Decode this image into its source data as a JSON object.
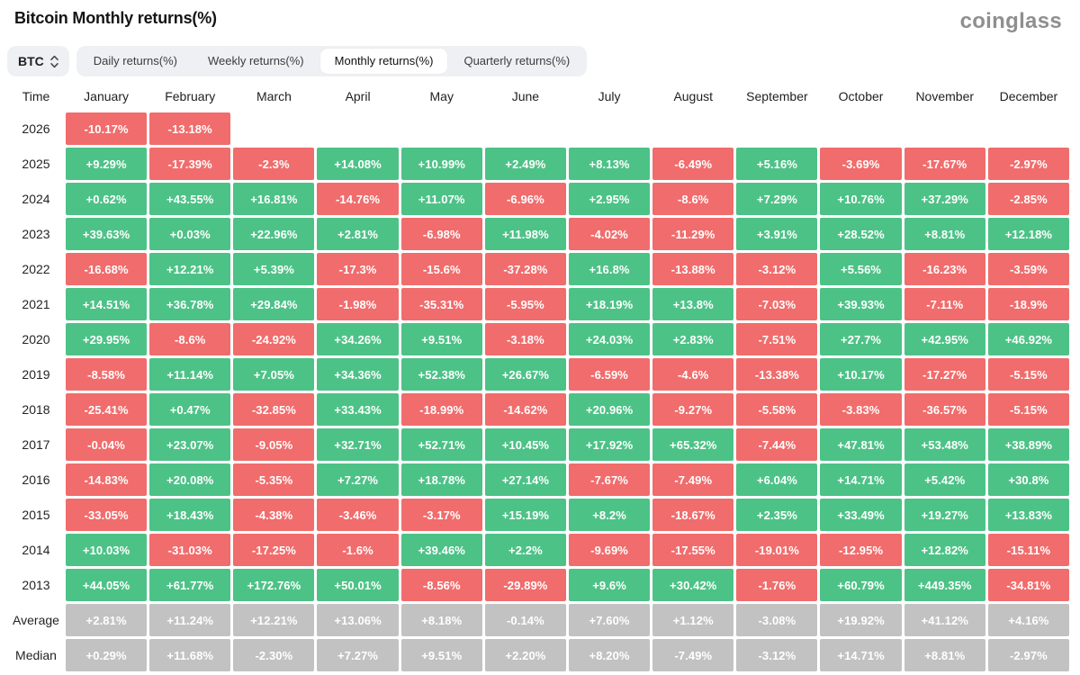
{
  "header": {
    "title": "Bitcoin Monthly returns(%)",
    "logo": "coinglass"
  },
  "controls": {
    "symbol": "BTC",
    "tabs": [
      {
        "label": "Daily returns(%)",
        "active": false
      },
      {
        "label": "Weekly returns(%)",
        "active": false
      },
      {
        "label": "Monthly returns(%)",
        "active": true
      },
      {
        "label": "Quarterly returns(%)",
        "active": false
      }
    ]
  },
  "colors": {
    "positive": "#4dc287",
    "negative": "#f16c6c",
    "summary": "#c2c2c2"
  },
  "chart_data": {
    "type": "heatmap",
    "title": "Bitcoin Monthly returns(%)",
    "time_header": "Time",
    "unit": "percent",
    "columns": [
      "January",
      "February",
      "March",
      "April",
      "May",
      "June",
      "July",
      "August",
      "September",
      "October",
      "November",
      "December"
    ],
    "rows": [
      {
        "label": "2026",
        "kind": "year",
        "values": [
          "-10.17%",
          "-13.18%",
          null,
          null,
          null,
          null,
          null,
          null,
          null,
          null,
          null,
          null
        ]
      },
      {
        "label": "2025",
        "kind": "year",
        "values": [
          "+9.29%",
          "-17.39%",
          "-2.3%",
          "+14.08%",
          "+10.99%",
          "+2.49%",
          "+8.13%",
          "-6.49%",
          "+5.16%",
          "-3.69%",
          "-17.67%",
          "-2.97%"
        ]
      },
      {
        "label": "2024",
        "kind": "year",
        "values": [
          "+0.62%",
          "+43.55%",
          "+16.81%",
          "-14.76%",
          "+11.07%",
          "-6.96%",
          "+2.95%",
          "-8.6%",
          "+7.29%",
          "+10.76%",
          "+37.29%",
          "-2.85%"
        ]
      },
      {
        "label": "2023",
        "kind": "year",
        "values": [
          "+39.63%",
          "+0.03%",
          "+22.96%",
          "+2.81%",
          "-6.98%",
          "+11.98%",
          "-4.02%",
          "-11.29%",
          "+3.91%",
          "+28.52%",
          "+8.81%",
          "+12.18%"
        ]
      },
      {
        "label": "2022",
        "kind": "year",
        "values": [
          "-16.68%",
          "+12.21%",
          "+5.39%",
          "-17.3%",
          "-15.6%",
          "-37.28%",
          "+16.8%",
          "-13.88%",
          "-3.12%",
          "+5.56%",
          "-16.23%",
          "-3.59%"
        ]
      },
      {
        "label": "2021",
        "kind": "year",
        "values": [
          "+14.51%",
          "+36.78%",
          "+29.84%",
          "-1.98%",
          "-35.31%",
          "-5.95%",
          "+18.19%",
          "+13.8%",
          "-7.03%",
          "+39.93%",
          "-7.11%",
          "-18.9%"
        ]
      },
      {
        "label": "2020",
        "kind": "year",
        "values": [
          "+29.95%",
          "-8.6%",
          "-24.92%",
          "+34.26%",
          "+9.51%",
          "-3.18%",
          "+24.03%",
          "+2.83%",
          "-7.51%",
          "+27.7%",
          "+42.95%",
          "+46.92%"
        ]
      },
      {
        "label": "2019",
        "kind": "year",
        "values": [
          "-8.58%",
          "+11.14%",
          "+7.05%",
          "+34.36%",
          "+52.38%",
          "+26.67%",
          "-6.59%",
          "-4.6%",
          "-13.38%",
          "+10.17%",
          "-17.27%",
          "-5.15%"
        ]
      },
      {
        "label": "2018",
        "kind": "year",
        "values": [
          "-25.41%",
          "+0.47%",
          "-32.85%",
          "+33.43%",
          "-18.99%",
          "-14.62%",
          "+20.96%",
          "-9.27%",
          "-5.58%",
          "-3.83%",
          "-36.57%",
          "-5.15%"
        ]
      },
      {
        "label": "2017",
        "kind": "year",
        "values": [
          "-0.04%",
          "+23.07%",
          "-9.05%",
          "+32.71%",
          "+52.71%",
          "+10.45%",
          "+17.92%",
          "+65.32%",
          "-7.44%",
          "+47.81%",
          "+53.48%",
          "+38.89%"
        ]
      },
      {
        "label": "2016",
        "kind": "year",
        "values": [
          "-14.83%",
          "+20.08%",
          "-5.35%",
          "+7.27%",
          "+18.78%",
          "+27.14%",
          "-7.67%",
          "-7.49%",
          "+6.04%",
          "+14.71%",
          "+5.42%",
          "+30.8%"
        ]
      },
      {
        "label": "2015",
        "kind": "year",
        "values": [
          "-33.05%",
          "+18.43%",
          "-4.38%",
          "-3.46%",
          "-3.17%",
          "+15.19%",
          "+8.2%",
          "-18.67%",
          "+2.35%",
          "+33.49%",
          "+19.27%",
          "+13.83%"
        ]
      },
      {
        "label": "2014",
        "kind": "year",
        "values": [
          "+10.03%",
          "-31.03%",
          "-17.25%",
          "-1.6%",
          "+39.46%",
          "+2.2%",
          "-9.69%",
          "-17.55%",
          "-19.01%",
          "-12.95%",
          "+12.82%",
          "-15.11%"
        ]
      },
      {
        "label": "2013",
        "kind": "year",
        "values": [
          "+44.05%",
          "+61.77%",
          "+172.76%",
          "+50.01%",
          "-8.56%",
          "-29.89%",
          "+9.6%",
          "+30.42%",
          "-1.76%",
          "+60.79%",
          "+449.35%",
          "-34.81%"
        ]
      },
      {
        "label": "Average",
        "kind": "summary",
        "values": [
          "+2.81%",
          "+11.24%",
          "+12.21%",
          "+13.06%",
          "+8.18%",
          "-0.14%",
          "+7.60%",
          "+1.12%",
          "-3.08%",
          "+19.92%",
          "+41.12%",
          "+4.16%"
        ]
      },
      {
        "label": "Median",
        "kind": "summary",
        "values": [
          "+0.29%",
          "+11.68%",
          "-2.30%",
          "+7.27%",
          "+9.51%",
          "+2.20%",
          "+8.20%",
          "-7.49%",
          "-3.12%",
          "+14.71%",
          "+8.81%",
          "-2.97%"
        ]
      }
    ]
  }
}
